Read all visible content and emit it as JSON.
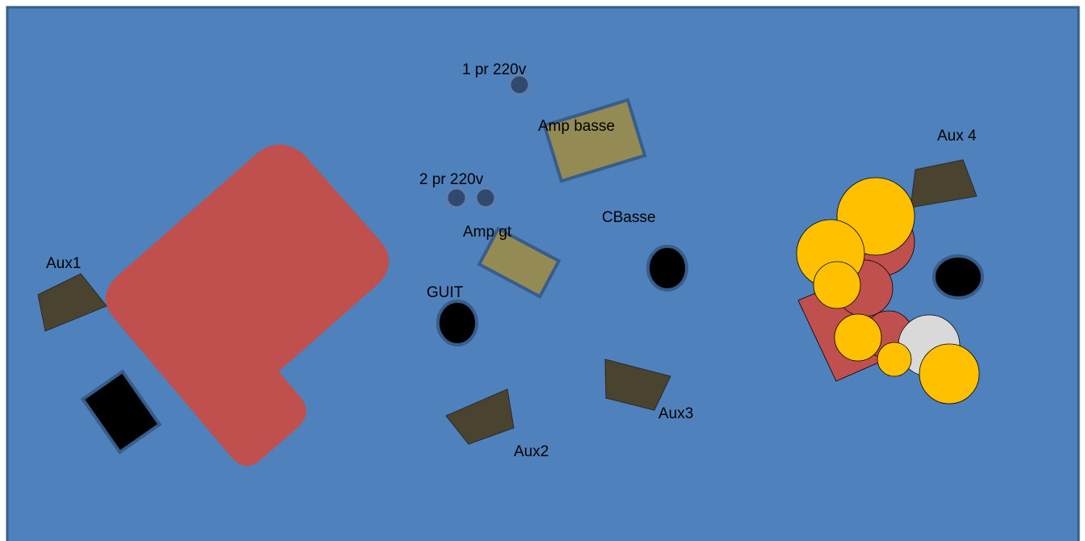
{
  "colors": {
    "stage_fill": "#4f81bd",
    "stage_border": "#385d8a",
    "drum_riser": "#c0504d",
    "monitor_wedge": "#4a4330",
    "amp_fill": "#948a54",
    "amp_border": "#385d8a",
    "outlet_fill": "#2f4a6d",
    "mic_fill": "#000000",
    "cymbal": "#ffc000",
    "drum_head": "#d9d9d9",
    "black_box": "#000000"
  },
  "labels": {
    "aux1": "Aux1",
    "aux2": "Aux2",
    "aux3": "Aux3",
    "aux4": "Aux 4",
    "amp_basse": "Amp basse",
    "amp_gt": "Amp gt",
    "cbasse": "CBasse",
    "guit": "GUIT",
    "outlet_1": "1 pr 220v",
    "outlet_2": "2 pr 220v"
  }
}
